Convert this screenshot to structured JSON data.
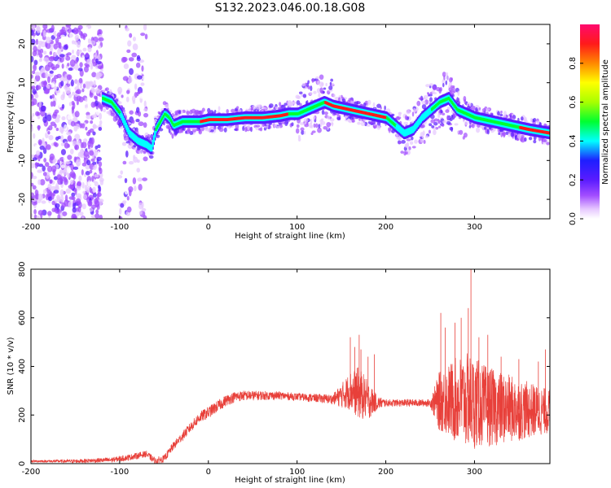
{
  "title": "S132.2023.046.00.18.G08",
  "colors": {
    "signal": "#e8403a",
    "spectrum_peak": "#e8403a",
    "axis": "#000000"
  },
  "chart_data": [
    {
      "type": "heatmap",
      "xlabel": "Height of straight line (km)",
      "ylabel": "Frequency (Hz)",
      "xlim": [
        -200,
        385
      ],
      "ylim": [
        -25,
        25
      ],
      "x_ticks": [
        -200,
        -100,
        0,
        100,
        200,
        300
      ],
      "y_ticks": [
        -20,
        -10,
        0,
        10,
        20
      ],
      "colorbar": {
        "label": "Normalized spectral amplitude",
        "range": [
          0,
          1
        ],
        "ticks": [
          "0.0",
          "0.2",
          "0.4",
          "0.6",
          "0.8"
        ],
        "tick_values": [
          0,
          0.2,
          0.4,
          0.6,
          0.8
        ]
      },
      "ridge": {
        "x": [
          -120,
          -110,
          -100,
          -90,
          -80,
          -70,
          -65,
          -60,
          -50,
          -45,
          -40,
          -30,
          -20,
          -10,
          0,
          20,
          40,
          60,
          80,
          90,
          100,
          110,
          120,
          130,
          140,
          160,
          180,
          200,
          205,
          210,
          220,
          230,
          240,
          250,
          260,
          270,
          280,
          290,
          300,
          320,
          340,
          360,
          385
        ],
        "y": [
          6,
          5,
          2,
          -3,
          -5,
          -6,
          -7,
          -2,
          2,
          1,
          -1,
          0,
          0,
          0,
          0.5,
          0.5,
          1,
          1,
          1.5,
          2,
          2,
          3,
          4,
          5,
          4,
          3,
          2,
          1,
          0,
          -1,
          -3,
          -2,
          1,
          3,
          5,
          6,
          3,
          2,
          1,
          0,
          -1,
          -2,
          -3
        ]
      }
    },
    {
      "type": "line",
      "xlabel": "Height of straight line (km)",
      "ylabel": "SNR (10 * v/v)",
      "xlim": [
        -200,
        385
      ],
      "ylim": [
        0,
        800
      ],
      "x_ticks": [
        -200,
        -100,
        0,
        100,
        200,
        300
      ],
      "y_ticks": [
        0,
        200,
        400,
        600,
        800
      ],
      "envelope": {
        "x": [
          -200,
          -150,
          -110,
          -90,
          -70,
          -60,
          -50,
          -40,
          -30,
          -20,
          -10,
          0,
          10,
          20,
          30,
          40,
          60,
          80,
          100,
          120,
          140,
          150,
          160,
          170,
          180,
          190,
          200,
          220,
          240,
          250,
          260,
          265,
          270,
          280,
          290,
          295,
          300,
          310,
          320,
          340,
          360,
          385
        ],
        "y": [
          10,
          10,
          15,
          25,
          40,
          10,
          20,
          70,
          110,
          150,
          190,
          210,
          235,
          260,
          275,
          280,
          280,
          280,
          275,
          270,
          265,
          280,
          300,
          290,
          260,
          250,
          250,
          250,
          250,
          250,
          255,
          260,
          260,
          260,
          260,
          255,
          250,
          240,
          230,
          225,
          220,
          215
        ]
      },
      "spread": {
        "x": [
          -200,
          -50,
          0,
          100,
          140,
          160,
          170,
          180,
          190,
          200,
          250,
          260,
          280,
          295,
          310,
          340,
          385
        ],
        "y": [
          4,
          15,
          25,
          15,
          20,
          80,
          110,
          80,
          30,
          15,
          15,
          120,
          180,
          200,
          170,
          140,
          90
        ]
      },
      "spikes": {
        "x": [
          160,
          165,
          170,
          172,
          180,
          187,
          262,
          267,
          278,
          285,
          293,
          296,
          305,
          315,
          330,
          350,
          372,
          380
        ],
        "y": [
          520,
          480,
          530,
          470,
          440,
          450,
          620,
          560,
          580,
          600,
          640,
          800,
          520,
          530,
          440,
          430,
          420,
          470
        ]
      }
    }
  ]
}
